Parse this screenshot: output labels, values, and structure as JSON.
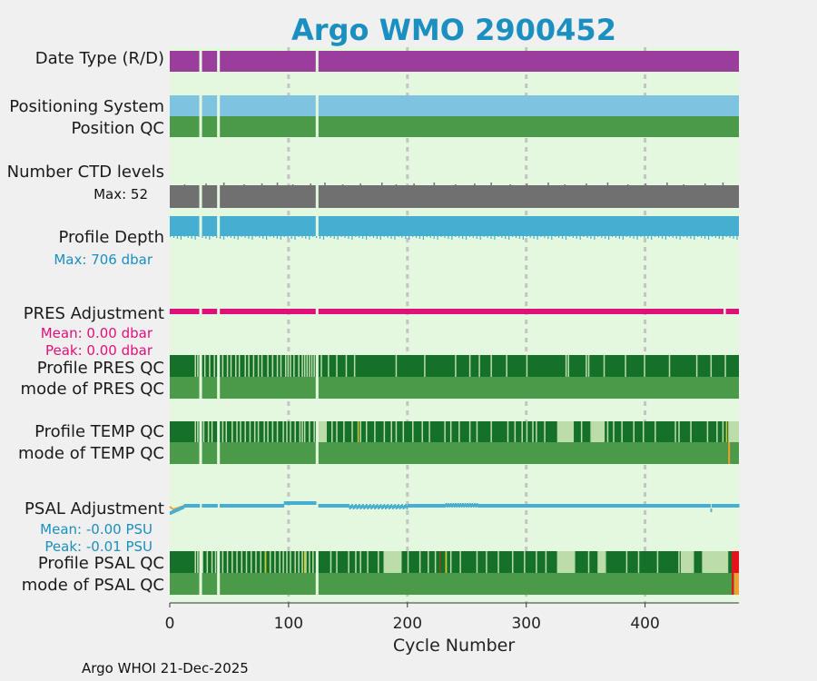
{
  "chart_data": {
    "type": "bar",
    "title": "Argo WMO 2900452",
    "xlabel": "Cycle Number",
    "xlim": [
      0,
      479
    ],
    "xticks": [
      "0",
      "100",
      "200",
      "300",
      "400"
    ],
    "xtick_values": [
      0,
      100,
      200,
      300,
      400
    ],
    "grid_x": [
      100,
      200,
      300,
      400
    ],
    "missing_cycles": [
      25,
      26,
      40,
      41,
      123,
      124
    ],
    "rows": [
      {
        "key": "date_type",
        "label": "Date Type (R/D)",
        "color": "#9b3d9a"
      },
      {
        "key": "positioning",
        "label": "Positioning System",
        "color": "#7ec4e0"
      },
      {
        "key": "position_qc",
        "label": "Position QC",
        "color": "#4a9a4a"
      },
      {
        "key": "ctd_levels",
        "label": "Number CTD levels",
        "color": "#707070",
        "note": "Max: 52",
        "max": 52
      },
      {
        "key": "profile_depth",
        "label": "Profile Depth",
        "color": "#46aed0",
        "note": "Max:  706 dbar",
        "max": 706
      },
      {
        "key": "pres_adj",
        "label": "PRES Adjustment",
        "color": "#e0107a",
        "notes": [
          "Mean: 0.00 dbar",
          "Peak: 0.00 dbar"
        ],
        "mean": 0.0,
        "peak": 0.0
      },
      {
        "key": "profile_pres_qc",
        "label": "Profile PRES QC"
      },
      {
        "key": "mode_pres_qc",
        "label": "mode of PRES QC",
        "color": "#4a9a4a"
      },
      {
        "key": "profile_temp_qc",
        "label": "Profile TEMP QC"
      },
      {
        "key": "mode_temp_qc",
        "label": "mode of TEMP QC",
        "color": "#4a9a4a"
      },
      {
        "key": "psal_adj",
        "label": "PSAL Adjustment",
        "color": "#46aed0",
        "notes": [
          "Mean: -0.00 PSU",
          "Peak: -0.01 PSU"
        ],
        "mean": -0.0,
        "peak": -0.01
      },
      {
        "key": "profile_psal_qc",
        "label": "Profile PSAL QC"
      },
      {
        "key": "mode_psal_qc",
        "label": "mode of PSAL QC",
        "color": "#4a9a4a"
      }
    ],
    "qc_colors": {
      "A": "#15702a",
      "light": "#bcdcaa",
      "yellow": "#d4c82a",
      "red": "#e8101a",
      "orange": "#f0a030",
      "brown": "#8a4a1a"
    },
    "pres_qc_light_cycles": [
      21,
      23,
      29,
      33,
      37,
      44,
      48,
      51,
      55,
      58,
      63,
      66,
      70,
      74,
      77,
      82,
      86,
      90,
      93,
      97,
      99,
      101,
      104,
      108,
      111,
      113,
      115,
      117,
      119,
      121,
      127,
      133,
      140,
      148,
      155,
      190,
      214,
      240,
      252,
      260,
      270,
      283,
      300,
      333,
      335,
      350,
      352,
      365,
      383,
      399,
      420,
      443,
      455,
      467
    ],
    "temp_qc_light_cycles": [
      21,
      23,
      28,
      32,
      35,
      44,
      47,
      52,
      56,
      59,
      63,
      67,
      71,
      74,
      79,
      82,
      86,
      90,
      95,
      98,
      101,
      105,
      109,
      111,
      113,
      117,
      121,
      127,
      131,
      136,
      140,
      146,
      153,
      160,
      165,
      172,
      180,
      186,
      190,
      196,
      204,
      212,
      218,
      231,
      236,
      243,
      252,
      258,
      270,
      284,
      290,
      296,
      300,
      305,
      308,
      315,
      328,
      334,
      346,
      354,
      362,
      368,
      373,
      380,
      390,
      398,
      408,
      425,
      428,
      438,
      452,
      460,
      465
    ],
    "temp_qc_light_ranges": [
      [
        124,
        131
      ],
      [
        326,
        340
      ],
      [
        355,
        366
      ],
      [
        470,
        479
      ]
    ],
    "temp_qc_yellow_cycles": [
      158,
      468
    ],
    "psal_qc_light_cycles": [
      21,
      23,
      27,
      31,
      35,
      38,
      44,
      48,
      52,
      56,
      60,
      64,
      68,
      72,
      76,
      80,
      84,
      88,
      92,
      95,
      98,
      101,
      105,
      108,
      111,
      114,
      117,
      120,
      135,
      140,
      150,
      156,
      160,
      166,
      175,
      180,
      186,
      194,
      200,
      210,
      217,
      223,
      232,
      236,
      244,
      258,
      266,
      276,
      288,
      298,
      308,
      316,
      326,
      340,
      352,
      366,
      384,
      394,
      410,
      428,
      440,
      448,
      456,
      460
    ],
    "psal_qc_light_ranges": [
      [
        180,
        195
      ],
      [
        326,
        340
      ],
      [
        360,
        366
      ],
      [
        430,
        440
      ],
      [
        448,
        470
      ]
    ],
    "psal_qc_yellow_cycles": [
      80,
      113,
      232
    ],
    "psal_qc_brown_cycles": [
      227
    ],
    "psal_qc_red_range": [
      473,
      479
    ],
    "psal_mode_orange_range": [
      475,
      479
    ]
  },
  "footer": "Argo WHOI 21-Dec-2025"
}
